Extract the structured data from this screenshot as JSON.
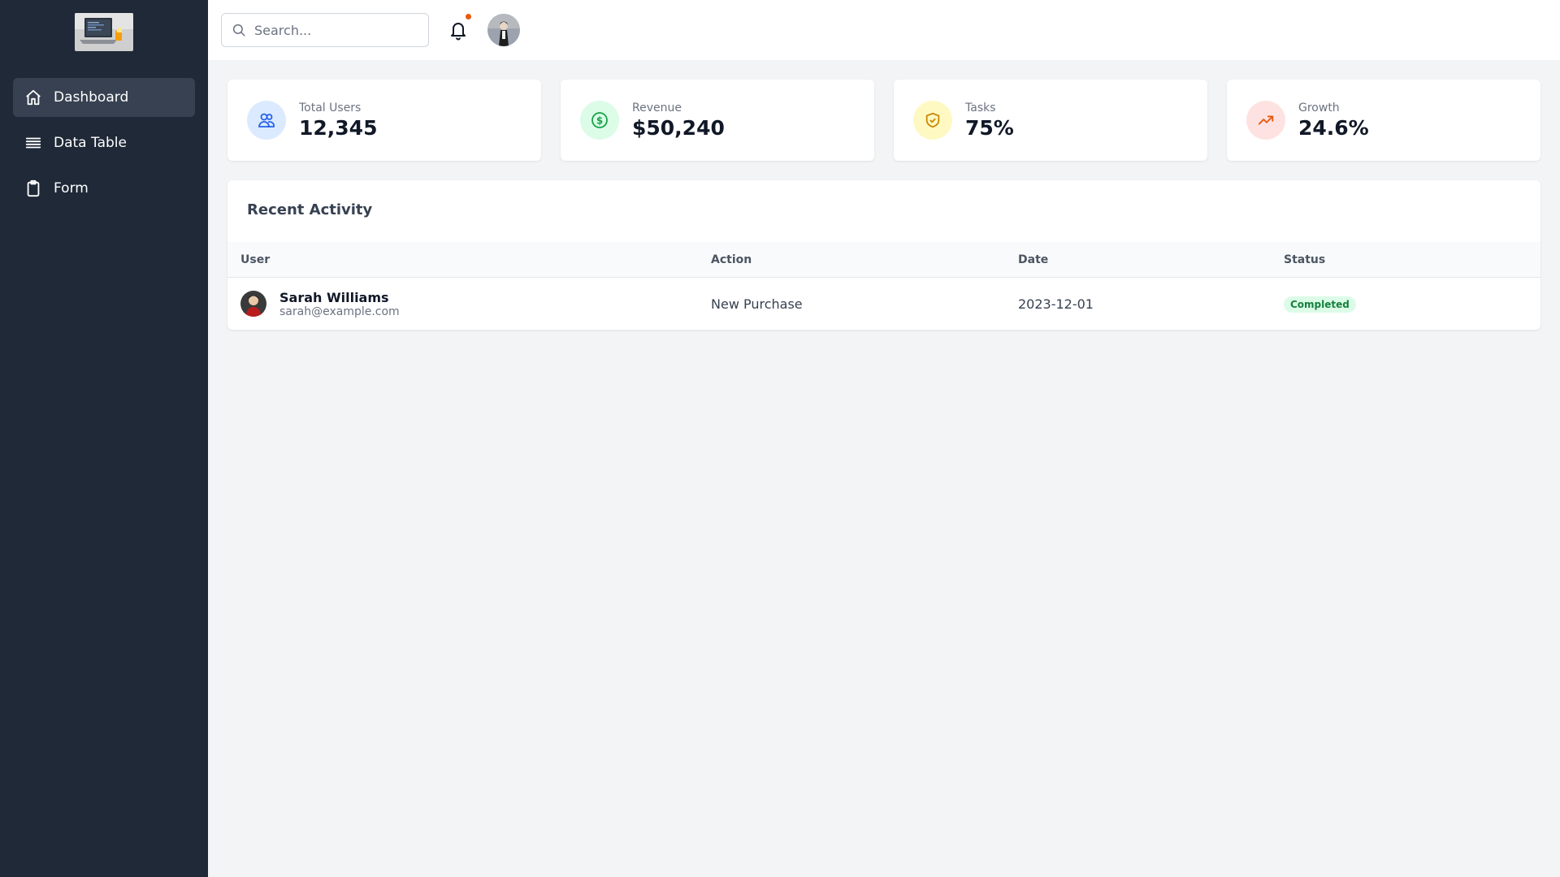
{
  "sidebar": {
    "logo_icon": "laptop-photo-logo",
    "items": [
      {
        "label": "Dashboard",
        "icon": "home-icon",
        "active": true
      },
      {
        "label": "Data Table",
        "icon": "list-icon",
        "active": false
      },
      {
        "label": "Form",
        "icon": "clipboard-icon",
        "active": false
      }
    ]
  },
  "header": {
    "search_placeholder": "Search...",
    "search_value": "",
    "notification_icon": "bell-icon",
    "has_notification": true,
    "avatar": "user-avatar"
  },
  "stats": [
    {
      "label": "Total Users",
      "value": "12,345",
      "icon": "users-icon",
      "bg": "#dbeafe",
      "fg": "#2563eb"
    },
    {
      "label": "Revenue",
      "value": "$50,240",
      "icon": "dollar-icon",
      "bg": "#dcfce7",
      "fg": "#16a34a"
    },
    {
      "label": "Tasks",
      "value": "75%",
      "icon": "shield-check-icon",
      "bg": "#fef9c3",
      "fg": "#ca8a04"
    },
    {
      "label": "Growth",
      "value": "24.6%",
      "icon": "trending-up-icon",
      "bg": "#fee2e2",
      "fg": "#ea580c"
    }
  ],
  "activity": {
    "title": "Recent Activity",
    "columns": [
      "User",
      "Action",
      "Date",
      "Status"
    ],
    "rows": [
      {
        "name": "Sarah Williams",
        "email": "sarah@example.com",
        "action": "New Purchase",
        "date": "2023-12-01",
        "status": "Completed"
      }
    ]
  },
  "colors": {
    "sidebar_bg": "#1f2937",
    "active_nav_bg": "#374151",
    "page_bg": "#f3f4f6",
    "status_completed_bg": "#dcfce7",
    "status_completed_fg": "#15803d",
    "notification_dot": "#ea580c"
  }
}
